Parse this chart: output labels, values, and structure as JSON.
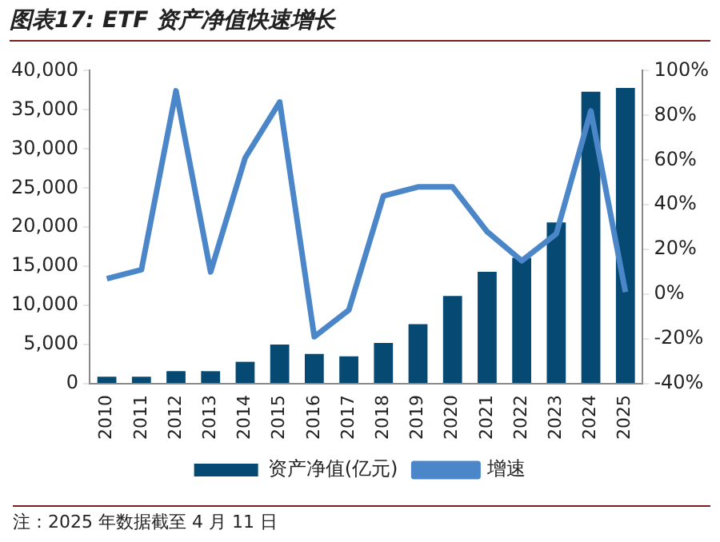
{
  "chart_data": {
    "type": "bar",
    "title": "图表17: ETF 资产净值快速增长",
    "categories": [
      "2010",
      "2011",
      "2012",
      "2013",
      "2014",
      "2015",
      "2016",
      "2017",
      "2018",
      "2019",
      "2020",
      "2021",
      "2022",
      "2023",
      "2024",
      "2025"
    ],
    "series": [
      {
        "name": "资产净值(亿元)",
        "color": "#064a74",
        "values": [
          900,
          900,
          1600,
          1600,
          2800,
          5000,
          3800,
          3500,
          5200,
          7600,
          11200,
          14300,
          16100,
          20600,
          37300,
          37800
        ]
      },
      {
        "name": "增速",
        "type": "line",
        "axis": "y2",
        "color": "#4a86c8",
        "values": [
          7,
          11,
          91,
          10,
          61,
          86,
          -19,
          -7,
          44,
          48,
          48,
          28,
          15,
          27,
          82,
          1
        ]
      }
    ],
    "ylim": [
      0,
      40000
    ],
    "yticks": [
      {
        "value": 0,
        "label": "0"
      },
      {
        "value": 5000,
        "label": "5,000"
      },
      {
        "value": 10000,
        "label": "10,000"
      },
      {
        "value": 15000,
        "label": "15,000"
      },
      {
        "value": 20000,
        "label": "20,000"
      },
      {
        "value": 25000,
        "label": "25,000"
      },
      {
        "value": 30000,
        "label": "30,000"
      },
      {
        "value": 35000,
        "label": "35,000"
      },
      {
        "value": 40000,
        "label": "40,000"
      }
    ],
    "y2lim": [
      -40,
      100
    ],
    "y2ticks": [
      {
        "value": -40,
        "label": "-40%"
      },
      {
        "value": -20,
        "label": "-20%"
      },
      {
        "value": 0,
        "label": "0%"
      },
      {
        "value": 20,
        "label": "20%"
      },
      {
        "value": 40,
        "label": "40%"
      },
      {
        "value": 60,
        "label": "60%"
      },
      {
        "value": 80,
        "label": "80%"
      },
      {
        "value": 100,
        "label": "100%"
      }
    ],
    "grid": false,
    "legend": "bottom",
    "marker": "none",
    "annotations": [
      "注：2025 年数据截至 4 月 11 日"
    ]
  }
}
